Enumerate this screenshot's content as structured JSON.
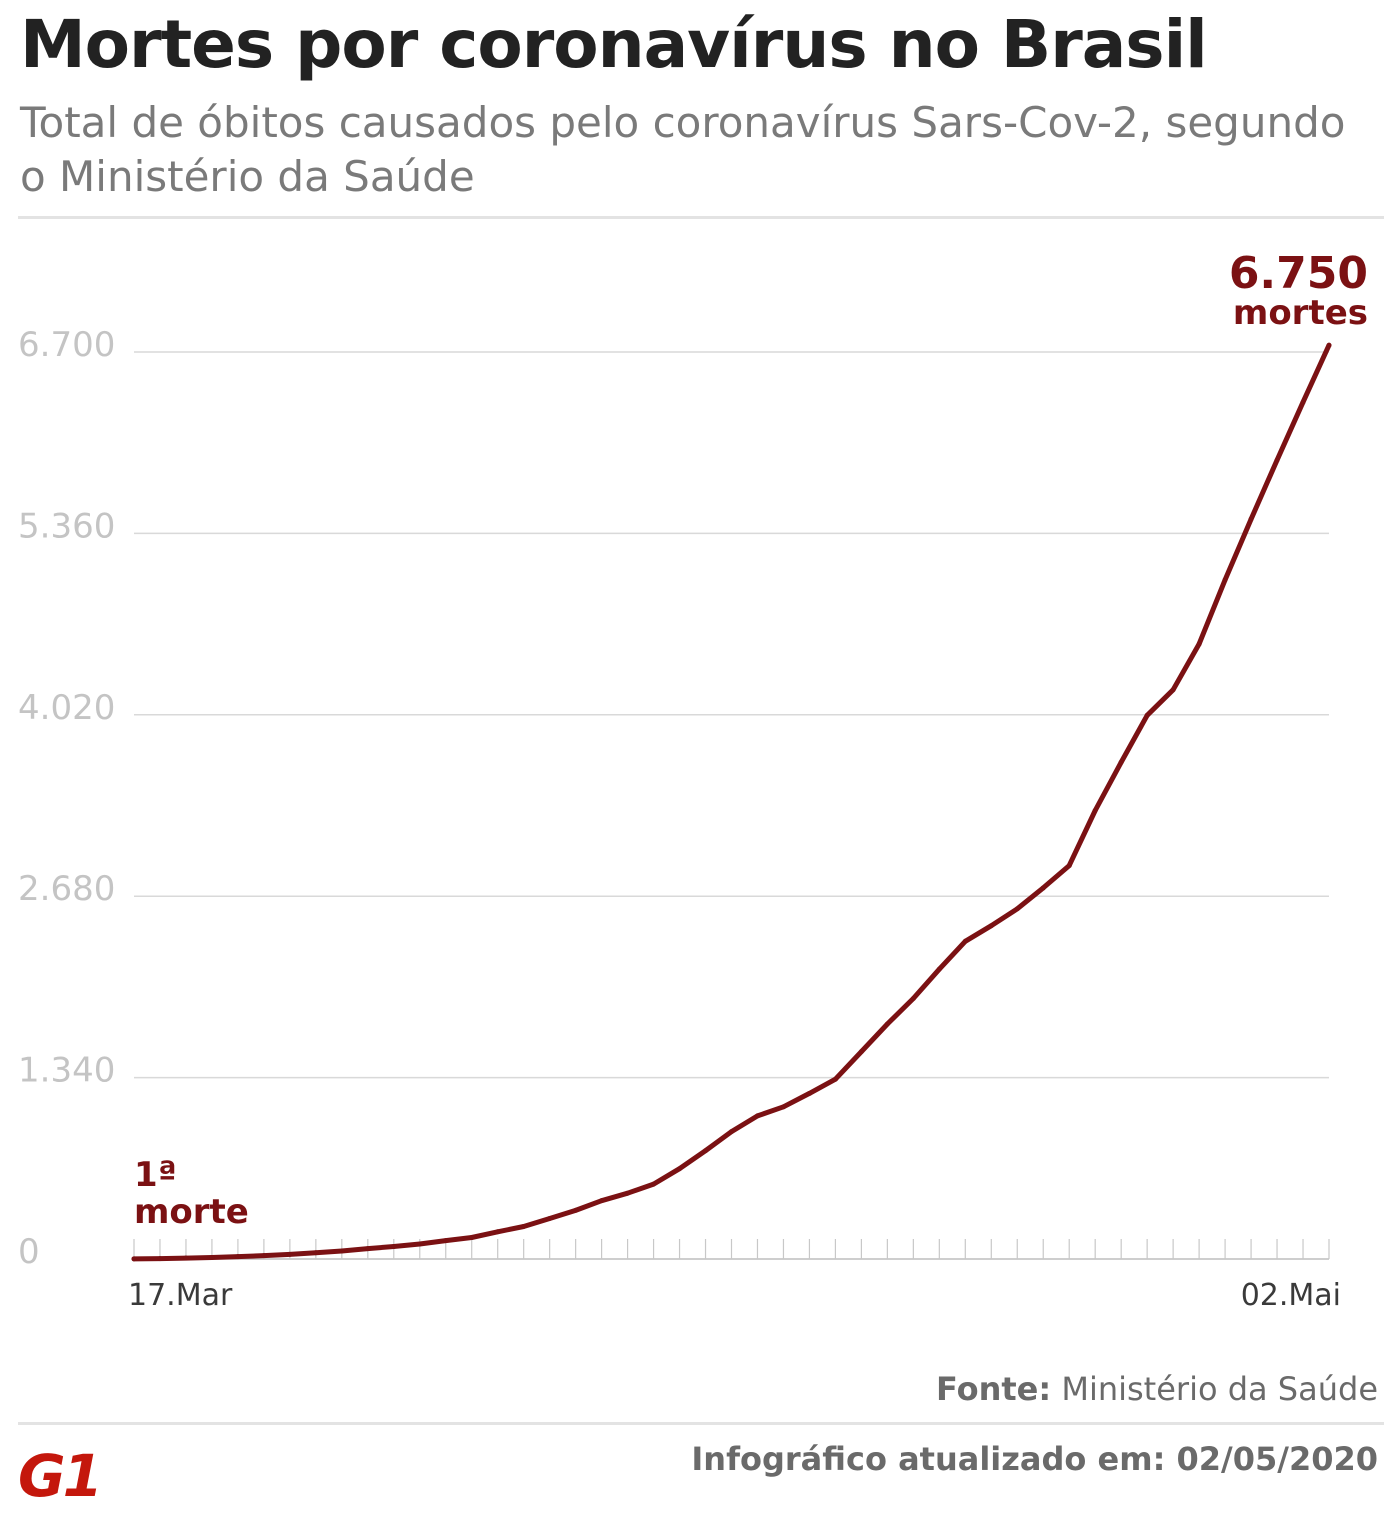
{
  "title": "Mortes por coronavírus no Brasil",
  "subtitle": "Total de óbitos causados pelo coronavírus Sars-Cov-2, segundo o Ministério da Saúde",
  "annotations": {
    "last_value": "6.750",
    "last_unit": "mortes",
    "first_line1": "1ª",
    "first_line2": "morte"
  },
  "footer": {
    "source_label": "Fonte:",
    "source_name": "Ministério da Saúde",
    "updated": "Infográfico atualizado em: 02/05/2020"
  },
  "logo": {
    "text": "G1",
    "color": "#c4170c"
  },
  "colors": {
    "line": "#7b1113",
    "grid": "#d9d9d9",
    "tick_label": "#c4c4c4"
  },
  "chart_data": {
    "type": "line",
    "title": "Mortes por coronavírus no Brasil",
    "x_range": [
      "2020-03-17",
      "2020-05-02"
    ],
    "x_tick_labels": [
      "17.Mar",
      "02.Mai"
    ],
    "y_ticks": [
      0,
      1340,
      2680,
      4020,
      5360,
      6700
    ],
    "y_tick_labels": [
      "0",
      "1.340",
      "2.680",
      "4.020",
      "5.360",
      "6.700"
    ],
    "ylim": [
      0,
      6700
    ],
    "grid": true,
    "legend": "none",
    "series": [
      {
        "x": [
          "2020-03-17",
          "2020-03-18",
          "2020-03-19",
          "2020-03-20",
          "2020-03-21",
          "2020-03-22",
          "2020-03-23",
          "2020-03-24",
          "2020-03-25",
          "2020-03-26",
          "2020-03-27",
          "2020-03-28",
          "2020-03-29",
          "2020-03-30",
          "2020-03-31",
          "2020-04-01",
          "2020-04-02",
          "2020-04-03",
          "2020-04-04",
          "2020-04-05",
          "2020-04-06",
          "2020-04-07",
          "2020-04-08",
          "2020-04-09",
          "2020-04-10",
          "2020-04-11",
          "2020-04-12",
          "2020-04-13",
          "2020-04-14",
          "2020-04-15",
          "2020-04-16",
          "2020-04-17",
          "2020-04-18",
          "2020-04-19",
          "2020-04-20",
          "2020-04-21",
          "2020-04-22",
          "2020-04-23",
          "2020-04-24",
          "2020-04-25",
          "2020-04-26",
          "2020-04-27",
          "2020-04-28",
          "2020-04-29",
          "2020-04-30",
          "2020-05-01",
          "2020-05-02"
        ],
        "y": [
          1,
          3,
          7,
          11,
          18,
          25,
          34,
          46,
          59,
          77,
          92,
          111,
          136,
          159,
          201,
          240,
          299,
          359,
          431,
          486,
          553,
          667,
          800,
          941,
          1057,
          1124,
          1223,
          1328,
          1532,
          1736,
          1924,
          2141,
          2347,
          2462,
          2587,
          2741,
          2906,
          3313,
          3670,
          4016,
          4205,
          4543,
          5017,
          5466,
          5901,
          6329,
          6750
        ]
      }
    ]
  }
}
